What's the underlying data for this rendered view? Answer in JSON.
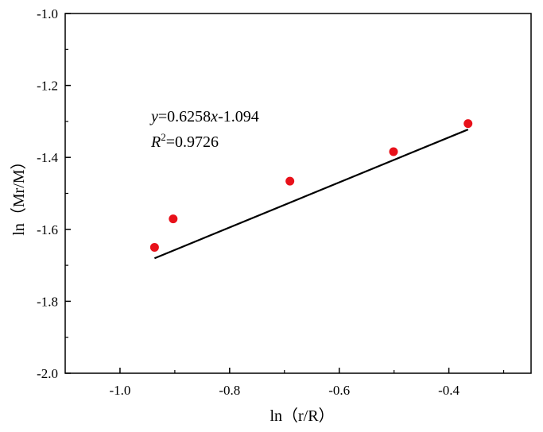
{
  "chart_data": {
    "type": "scatter",
    "xlabel": "ln（r/R）",
    "ylabel": "ln（Mr/M）",
    "xlim": [
      -1.1,
      -0.25
    ],
    "ylim": [
      -2.0,
      -1.0
    ],
    "x_ticks": [
      -1.0,
      -0.8,
      -0.6,
      -0.4
    ],
    "x_tick_labels": [
      "-1.0",
      "-0.8",
      "-0.6",
      "-0.4"
    ],
    "y_ticks": [
      -2.0,
      -1.8,
      -1.6,
      -1.4,
      -1.2,
      -1.0
    ],
    "y_tick_labels": [
      "-2.0",
      "-1.8",
      "-1.6",
      "-1.4",
      "-1.2",
      "-1.0"
    ],
    "grid": false,
    "series": [
      {
        "points": [
          {
            "x": -0.937,
            "y": -1.65
          },
          {
            "x": -0.903,
            "y": -1.571
          },
          {
            "x": -0.69,
            "y": -1.466
          },
          {
            "x": -0.501,
            "y": -1.384
          },
          {
            "x": -0.365,
            "y": -1.306
          }
        ],
        "color": "#e8111a"
      }
    ],
    "fit_line": {
      "slope": 0.6258,
      "intercept": -1.094,
      "x_range": [
        -0.937,
        -0.365
      ],
      "color": "#000000"
    },
    "annotations": {
      "equation": {
        "y_var": "y",
        "middle": "=0.6258",
        "x_var": "x",
        "tail": "-1.094"
      },
      "r2": {
        "r_var": "R",
        "sup": "2",
        "tail": "=0.9726"
      }
    }
  }
}
